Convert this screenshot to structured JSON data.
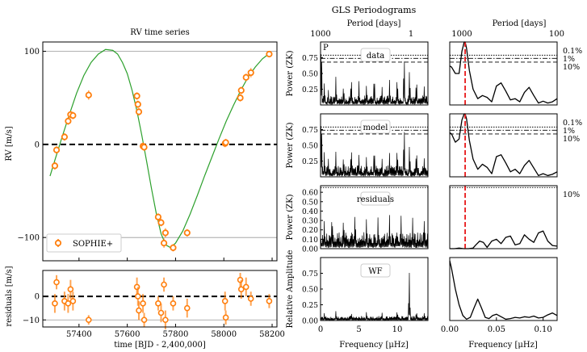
{
  "figure": {
    "suptitle": "GLS Periodograms",
    "left_title": "RV time series"
  },
  "colors": {
    "model": "#2ca02c",
    "points": "#ff7f0e",
    "planet_line": "#e8191a",
    "ink": "#000000"
  },
  "chart_data": [
    {
      "id": "rv",
      "type": "scatter",
      "title": "RV time series",
      "ylabel": "RV [m/s]",
      "xlim": [
        57250,
        58220
      ],
      "ylim": [
        -125,
        110
      ],
      "yticks": [
        -100,
        0,
        100
      ],
      "hlines": [
        {
          "y": 100,
          "style": "gray"
        },
        {
          "y": 0,
          "style": "dashed"
        },
        {
          "y": -100,
          "style": "gray"
        }
      ],
      "legend": "SOPHIE+",
      "legend_loc": "lower-left",
      "series": [
        {
          "name": "SOPHIE+",
          "x": [
            57300,
            57307,
            57340,
            57355,
            57365,
            57375,
            57440,
            57640,
            57644,
            57648,
            57665,
            57670,
            57728,
            57740,
            57752,
            57758,
            57790,
            57848,
            58005,
            58008,
            58068,
            58072,
            58092,
            58112,
            58188
          ],
          "y": [
            -23,
            -6,
            8,
            25,
            32,
            31,
            53,
            52,
            43,
            35,
            -2,
            -3,
            -78,
            -84,
            -106,
            -95,
            -111,
            -95,
            1,
            2,
            50,
            58,
            72,
            77,
            97
          ],
          "err": [
            4,
            4,
            4,
            4,
            4,
            4,
            5,
            4,
            4,
            4,
            4,
            4,
            4,
            4,
            5,
            5,
            4,
            4,
            4,
            4,
            4,
            4,
            4,
            5,
            3
          ]
        },
        {
          "name": "model",
          "x": [
            57280,
            57300,
            57330,
            57360,
            57390,
            57420,
            57450,
            57480,
            57510,
            57540,
            57560,
            57580,
            57600,
            57620,
            57640,
            57660,
            57680,
            57700,
            57720,
            57740,
            57760,
            57780,
            57800,
            57830,
            57860,
            57890,
            57920,
            57950,
            57980,
            58010,
            58040,
            58070,
            58100,
            58130,
            58160,
            58190
          ],
          "y": [
            -34,
            -17,
            8,
            32,
            55,
            74,
            88,
            97,
            102,
            101,
            97,
            88,
            76,
            58,
            36,
            10,
            -18,
            -47,
            -74,
            -96,
            -108,
            -111,
            -106,
            -93,
            -75,
            -55,
            -34,
            -14,
            6,
            25,
            42,
            58,
            72,
            83,
            92,
            98
          ]
        }
      ]
    },
    {
      "id": "residuals",
      "type": "scatter",
      "xlabel": "time [BJD - 2,400,000]",
      "ylabel": "residuals [m/s]",
      "xlim": [
        57250,
        58220
      ],
      "ylim": [
        -13,
        11
      ],
      "yticks": [
        -10,
        0
      ],
      "xticks": [
        57400,
        57600,
        57800,
        58000,
        58200
      ],
      "series": [
        {
          "name": "SOPHIE+",
          "x": [
            57300,
            57307,
            57340,
            57355,
            57365,
            57375,
            57440,
            57640,
            57644,
            57648,
            57665,
            57670,
            57728,
            57740,
            57752,
            57758,
            57790,
            57848,
            58005,
            58008,
            58068,
            58072,
            58092,
            58112,
            58188
          ],
          "y": [
            -3,
            6,
            -2,
            -3,
            3,
            -2,
            -10,
            4,
            0,
            -6,
            -3,
            -10,
            -3,
            -7,
            5,
            -10,
            -3,
            -5,
            -2,
            -9,
            7,
            3,
            4,
            -1,
            -2
          ],
          "err": [
            4,
            3,
            4,
            4,
            4,
            4,
            2,
            4,
            4,
            4,
            4,
            3,
            3,
            4,
            3,
            4,
            3,
            4,
            4,
            3,
            3,
            4,
            4,
            3,
            3
          ]
        }
      ]
    },
    {
      "id": "gls_freq",
      "type": "line",
      "title": "Period [days]",
      "xlabel": "Frequency [μHz]",
      "xlim": [
        0,
        14
      ],
      "xticks": [
        0,
        5,
        10
      ],
      "top_ticks": [
        "1000",
        "1"
      ],
      "panels": [
        {
          "label": "data",
          "ylabel": "Power (ZK)",
          "ylim": [
            0,
            1.0
          ],
          "yticks": [
            0.25,
            0.5,
            0.75
          ],
          "fap_levels": [
            0.79,
            0.74,
            0.68
          ],
          "planet": "P_b",
          "peaks_x": [
            0.1,
            0.5,
            1.0,
            2.0,
            3.0,
            4.0,
            5.0,
            6.0,
            7.0,
            8.0,
            9.0,
            10.0,
            10.9,
            11.6,
            12.5,
            13.5
          ],
          "peaks_y": [
            1.0,
            0.35,
            0.25,
            0.45,
            0.3,
            0.42,
            0.38,
            0.32,
            0.45,
            0.3,
            0.4,
            0.42,
            0.76,
            0.55,
            0.4,
            0.3
          ]
        },
        {
          "label": "model",
          "ylabel": "Power (ZK)",
          "ylim": [
            0,
            1.0
          ],
          "yticks": [
            0.25,
            0.5,
            0.75
          ],
          "fap_levels": [
            0.79,
            0.74,
            0.68
          ],
          "planet": "",
          "peaks_x": [
            0.1,
            0.5,
            1.0,
            2.0,
            3.0,
            4.0,
            5.0,
            6.0,
            7.0,
            8.0,
            9.0,
            10.0,
            10.9,
            11.6,
            12.5,
            13.5
          ],
          "peaks_y": [
            1.0,
            0.4,
            0.3,
            0.4,
            0.32,
            0.45,
            0.35,
            0.33,
            0.45,
            0.3,
            0.38,
            0.44,
            0.78,
            0.5,
            0.42,
            0.3
          ]
        },
        {
          "label": "residuals",
          "ylabel": "Power (ZK)",
          "ylim": [
            0,
            0.67
          ],
          "yticks": [
            0.0,
            0.1,
            0.2,
            0.3,
            0.4,
            0.5,
            0.6
          ],
          "fap_levels": [
            0.65
          ],
          "planet": "",
          "peaks_x": [
            0.5,
            1.5,
            3.0,
            4.5,
            6.0,
            7.5,
            9.0,
            10.5,
            12.0,
            13.5
          ],
          "peaks_y": [
            0.3,
            0.35,
            0.32,
            0.37,
            0.33,
            0.34,
            0.36,
            0.35,
            0.33,
            0.3
          ]
        },
        {
          "label": "WF",
          "ylabel": "Relative Amplitude",
          "ylim": [
            0,
            1.0
          ],
          "yticks": [
            0.0,
            0.25,
            0.5,
            0.75
          ],
          "fap_levels": [],
          "planet": "",
          "peaks_x": [
            0.5,
            2.0,
            4.0,
            6.0,
            8.0,
            10.0,
            11.57,
            12.5,
            13.5
          ],
          "peaks_y": [
            0.12,
            0.15,
            0.12,
            0.14,
            0.13,
            0.15,
            0.76,
            0.14,
            0.12
          ]
        }
      ]
    },
    {
      "id": "gls_zoom",
      "type": "line",
      "title": "Period [days]",
      "xlabel": "Frequency [μHz]",
      "xlim": [
        0,
        0.115
      ],
      "xticks": [
        0.0,
        0.05,
        0.1
      ],
      "tick_labels": [
        "0.00",
        "0.05",
        "0.10"
      ],
      "top_ticks": [
        "1000",
        "100"
      ],
      "fap_labels": [
        "0.1%",
        "1%",
        "10%"
      ],
      "planet_freq": 0.0165,
      "panels": [
        {
          "x": [
            0,
            0.002,
            0.006,
            0.01,
            0.013,
            0.0155,
            0.0165,
            0.018,
            0.021,
            0.025,
            0.03,
            0.035,
            0.04,
            0.045,
            0.05,
            0.055,
            0.06,
            0.065,
            0.07,
            0.075,
            0.08,
            0.085,
            0.09,
            0.095,
            0.1,
            0.105,
            0.11,
            0.115
          ],
          "y": [
            0.62,
            0.6,
            0.5,
            0.5,
            0.85,
            1.0,
            1.0,
            0.9,
            0.55,
            0.25,
            0.1,
            0.15,
            0.12,
            0.05,
            0.3,
            0.35,
            0.22,
            0.08,
            0.1,
            0.05,
            0.2,
            0.28,
            0.15,
            0.03,
            0.06,
            0.03,
            0.05,
            0.1
          ]
        },
        {
          "x": [
            0,
            0.002,
            0.006,
            0.01,
            0.013,
            0.0155,
            0.0165,
            0.018,
            0.021,
            0.025,
            0.03,
            0.035,
            0.04,
            0.045,
            0.05,
            0.055,
            0.06,
            0.065,
            0.07,
            0.075,
            0.08,
            0.085,
            0.09,
            0.095,
            0.1,
            0.105,
            0.11,
            0.115
          ],
          "y": [
            0.7,
            0.68,
            0.55,
            0.6,
            0.9,
            1.0,
            1.0,
            0.92,
            0.58,
            0.28,
            0.12,
            0.2,
            0.15,
            0.05,
            0.32,
            0.35,
            0.22,
            0.08,
            0.12,
            0.05,
            0.18,
            0.26,
            0.14,
            0.02,
            0.05,
            0.02,
            0.04,
            0.08
          ]
        },
        {
          "x": [
            0,
            0.005,
            0.01,
            0.015,
            0.02,
            0.025,
            0.028,
            0.032,
            0.036,
            0.04,
            0.045,
            0.05,
            0.055,
            0.06,
            0.065,
            0.07,
            0.075,
            0.08,
            0.085,
            0.09,
            0.095,
            0.1,
            0.105,
            0.11,
            0.115
          ],
          "y": [
            0.0,
            0.0,
            0.01,
            0.0,
            0.0,
            0.01,
            0.06,
            0.12,
            0.1,
            0.02,
            0.12,
            0.15,
            0.08,
            0.18,
            0.2,
            0.06,
            0.08,
            0.22,
            0.15,
            0.1,
            0.25,
            0.28,
            0.12,
            0.05,
            0.04
          ]
        },
        {
          "x": [
            0,
            0.002,
            0.006,
            0.01,
            0.014,
            0.018,
            0.022,
            0.026,
            0.03,
            0.034,
            0.038,
            0.042,
            0.046,
            0.05,
            0.055,
            0.06,
            0.065,
            0.07,
            0.075,
            0.08,
            0.085,
            0.09,
            0.095,
            0.1,
            0.105,
            0.11,
            0.115
          ],
          "y": [
            0.95,
            0.82,
            0.5,
            0.25,
            0.08,
            0.02,
            0.05,
            0.2,
            0.34,
            0.2,
            0.05,
            0.03,
            0.08,
            0.1,
            0.06,
            0.02,
            0.03,
            0.05,
            0.04,
            0.06,
            0.05,
            0.07,
            0.04,
            0.05,
            0.09,
            0.12,
            0.08
          ]
        }
      ]
    }
  ]
}
